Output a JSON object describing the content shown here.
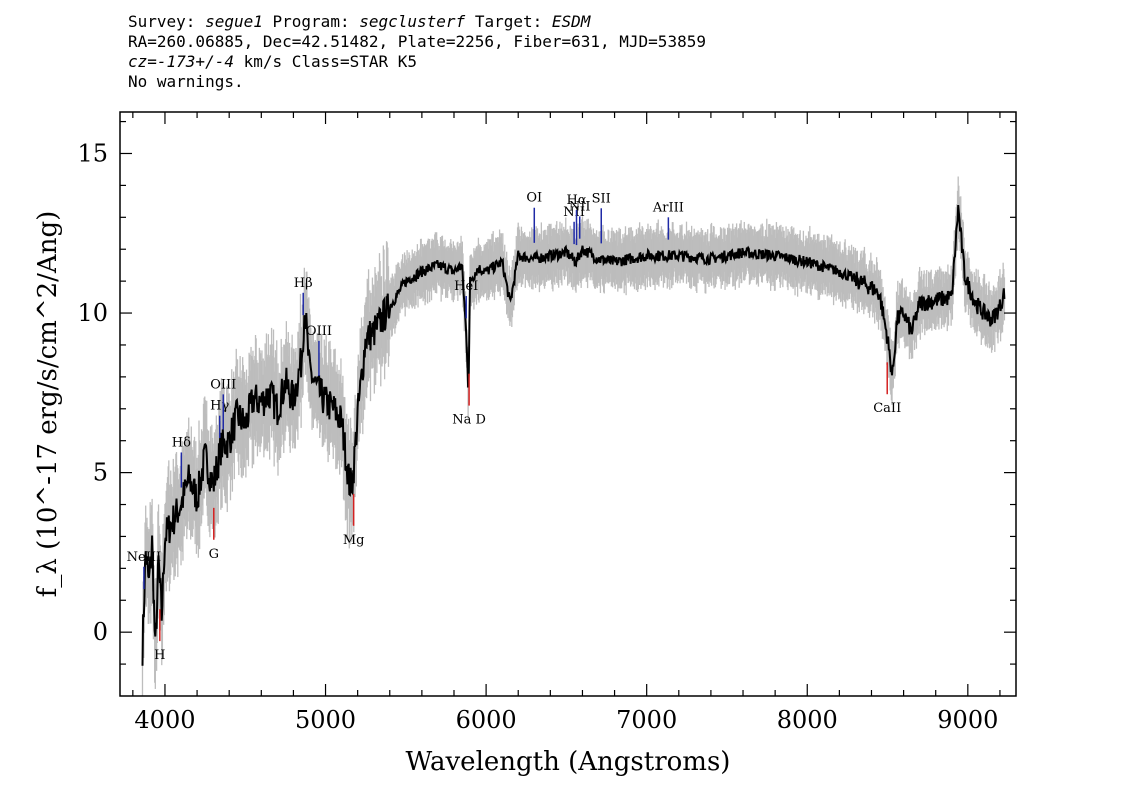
{
  "header": {
    "survey_label": "Survey:",
    "survey": "segue1",
    "program_label": "Program:",
    "program": "segclusterf",
    "target_label": "Target:",
    "target": "ESDM",
    "line2": "RA=260.06885, Dec=42.51482, Plate=2256, Fiber=631, MJD=53859",
    "cz": "cz=-173+/-4",
    "cz_rest": "km/s Class=STAR K5",
    "line4": "No warnings."
  },
  "chart_data": {
    "type": "line",
    "xlabel": "Wavelength (Angstroms)",
    "ylabel": "f_λ (10^-17 erg/s/cm^2/Ang)",
    "xlim": [
      3720,
      9300
    ],
    "ylim": [
      -2,
      16.3
    ],
    "xticks": [
      4000,
      5000,
      6000,
      7000,
      8000,
      9000
    ],
    "yticks": [
      0,
      5,
      10,
      15
    ],
    "grid": false,
    "colors": {
      "flux": "#000000",
      "error_band": "#bdbdbd",
      "emission": "#1f2aa6",
      "absorption": "#d42020"
    },
    "series": [
      {
        "name": "",
        "x": [
          3860,
          3880,
          3900,
          3920,
          3940,
          3960,
          3980,
          4000,
          4050,
          4100,
          4150,
          4200,
          4250,
          4300,
          4350,
          4400,
          4450,
          4500,
          4550,
          4600,
          4650,
          4700,
          4750,
          4800,
          4850,
          4870,
          4900,
          4950,
          5000,
          5050,
          5100,
          5150,
          5170,
          5200,
          5250,
          5300,
          5400,
          5500,
          5600,
          5700,
          5800,
          5850,
          5880,
          5890,
          5900,
          5950,
          6000,
          6100,
          6150,
          6200,
          6300,
          6400,
          6500,
          6560,
          6600,
          6700,
          6800,
          7000,
          7200,
          7400,
          7600,
          7800,
          8000,
          8200,
          8400,
          8450,
          8500,
          8530,
          8560,
          8600,
          8650,
          8700,
          8800,
          8900,
          8940,
          8980,
          9000,
          9050,
          9100,
          9150,
          9200,
          9230
        ],
        "values": [
          -0.5,
          2.5,
          1.5,
          2.8,
          -0.6,
          2.2,
          0.5,
          3.0,
          3.5,
          4.0,
          4.8,
          4.2,
          5.5,
          4.6,
          5.8,
          6.0,
          6.8,
          6.5,
          7.3,
          7.2,
          7.5,
          7.0,
          7.8,
          7.3,
          8.5,
          10.2,
          8.2,
          7.6,
          7.2,
          7.0,
          6.6,
          4.6,
          4.8,
          6.8,
          9.2,
          9.4,
          10.2,
          11.0,
          11.3,
          11.5,
          11.3,
          11.5,
          9.0,
          7.5,
          11.0,
          11.4,
          11.3,
          11.6,
          10.3,
          11.8,
          11.7,
          11.8,
          11.9,
          11.6,
          12.0,
          11.7,
          11.6,
          11.8,
          11.8,
          11.7,
          11.9,
          11.8,
          11.6,
          11.3,
          10.8,
          10.6,
          9.2,
          8.0,
          9.8,
          10.0,
          9.4,
          10.3,
          10.4,
          10.5,
          13.3,
          11.2,
          10.9,
          10.3,
          10.0,
          9.8,
          10.2,
          10.7
        ]
      }
    ],
    "annotations": [
      {
        "label": "NeIII",
        "x": 3869,
        "kind": "emission"
      },
      {
        "label": "Hδ",
        "x": 4102,
        "kind": "emission"
      },
      {
        "label": "Hγ",
        "x": 4341,
        "kind": "emission"
      },
      {
        "label": "OIII",
        "x": 4363,
        "kind": "emission"
      },
      {
        "label": "Hβ",
        "x": 4861,
        "kind": "emission"
      },
      {
        "label": "OIII",
        "x": 4959,
        "kind": "emission"
      },
      {
        "label": "HeI",
        "x": 5876,
        "kind": "emission"
      },
      {
        "label": "OI",
        "x": 6300,
        "kind": "emission"
      },
      {
        "label": "NII",
        "x": 6548,
        "kind": "emission"
      },
      {
        "label": "Hα",
        "x": 6563,
        "kind": "emission"
      },
      {
        "label": "NII",
        "x": 6583,
        "kind": "emission"
      },
      {
        "label": "SII",
        "x": 6717,
        "kind": "emission"
      },
      {
        "label": "ArIII",
        "x": 7135,
        "kind": "emission"
      },
      {
        "label": "H",
        "x": 3968,
        "kind": "absorption"
      },
      {
        "label": "G",
        "x": 4304,
        "kind": "absorption"
      },
      {
        "label": "Mg",
        "x": 5175,
        "kind": "absorption"
      },
      {
        "label": "Na D",
        "x": 5894,
        "kind": "absorption"
      },
      {
        "label": "CaII",
        "x": 8498,
        "kind": "absorption"
      }
    ]
  }
}
